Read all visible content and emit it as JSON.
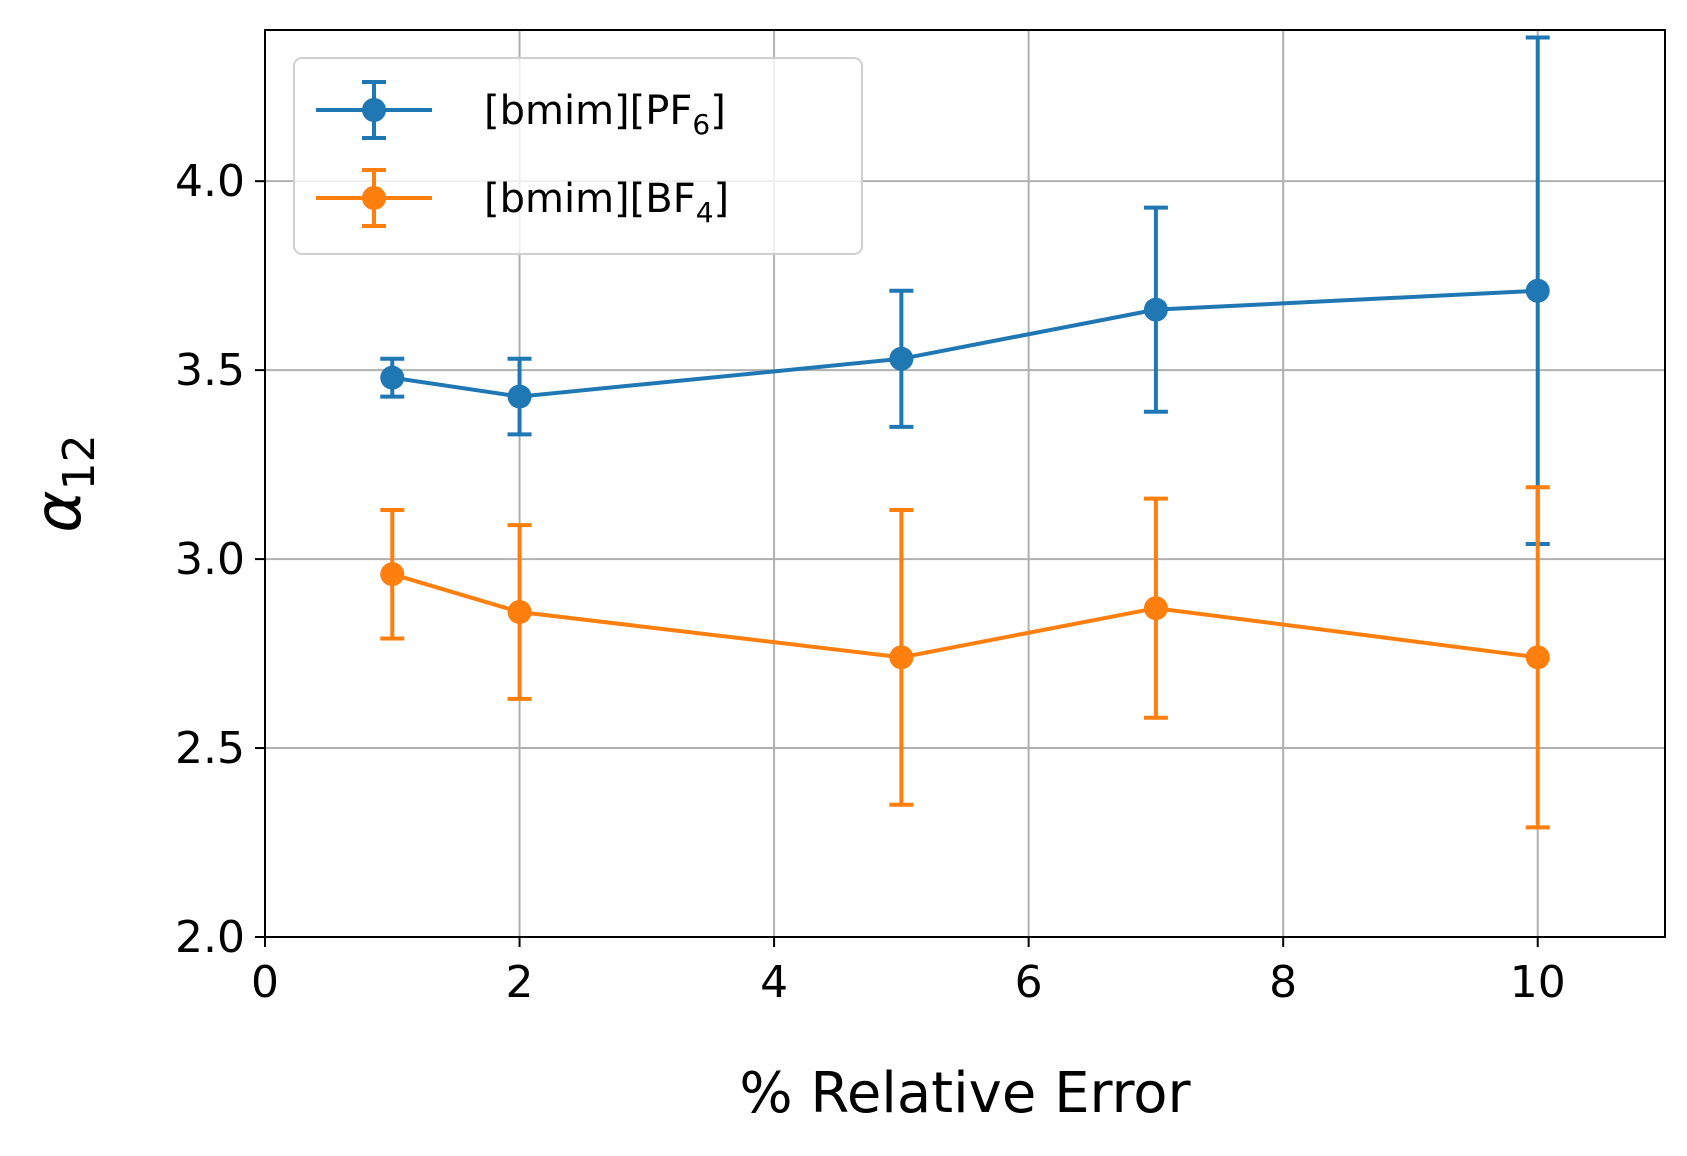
{
  "chart_data": {
    "type": "line",
    "xlabel": "% Relative Error",
    "ylabel": {
      "base": "α",
      "subscript": "12"
    },
    "xlim": [
      0,
      11
    ],
    "ylim": [
      2.0,
      4.4
    ],
    "xticks": [
      0,
      2,
      4,
      6,
      8,
      10
    ],
    "xtick_labels": [
      "0",
      "2",
      "4",
      "6",
      "8",
      "10"
    ],
    "yticks": [
      2.0,
      2.5,
      3.0,
      3.5,
      4.0
    ],
    "ytick_labels": [
      "2.0",
      "2.5",
      "3.0",
      "3.5",
      "4.0"
    ],
    "grid": true,
    "legend_position": "top-left",
    "error_bars": true,
    "series": [
      {
        "name": "[bmim][PF6]",
        "legend": {
          "base": "[bmim][PF",
          "subscript": "6",
          "suffix": "]"
        },
        "color": "#1f77b4",
        "x": [
          1,
          2,
          5,
          7,
          10
        ],
        "y": [
          3.48,
          3.43,
          3.53,
          3.66,
          3.71
        ],
        "yerr": [
          0.05,
          0.1,
          0.18,
          0.27,
          0.67
        ]
      },
      {
        "name": "[bmim][BF4]",
        "legend": {
          "base": "[bmim][BF",
          "subscript": "4",
          "suffix": "]"
        },
        "color": "#ff7f0e",
        "x": [
          1,
          2,
          5,
          7,
          10
        ],
        "y": [
          2.96,
          2.86,
          2.74,
          2.87,
          2.74
        ],
        "yerr": [
          0.17,
          0.23,
          0.39,
          0.29,
          0.45
        ]
      }
    ]
  }
}
